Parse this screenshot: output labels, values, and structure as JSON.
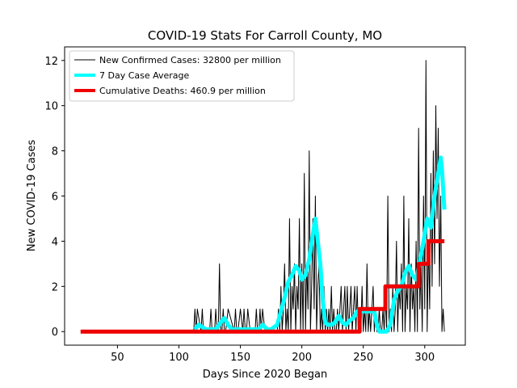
{
  "chart_data": {
    "type": "line",
    "title": "COVID-19 Stats For Carroll County, MO",
    "xlabel": "Days Since 2020 Began",
    "ylabel": "New COVID-19 Cases",
    "xlim": [
      7,
      333
    ],
    "ylim": [
      -0.6,
      12.6
    ],
    "xticks": [
      50,
      100,
      150,
      200,
      250,
      300
    ],
    "yticks": [
      0,
      2,
      4,
      6,
      8,
      10,
      12
    ],
    "grid": false,
    "legend": "top-left",
    "series": [
      {
        "name": "New Confirmed Cases: 32800 per million",
        "color": "#000000",
        "style": "line",
        "x": [
          20,
          110,
          111,
          112,
          113,
          114,
          115,
          118,
          119,
          120,
          121,
          125,
          126,
          127,
          128,
          129,
          130,
          131,
          132,
          133,
          134,
          135,
          136,
          137,
          138,
          140,
          145,
          146,
          147,
          148,
          150,
          152,
          153,
          154,
          155,
          156,
          158,
          160,
          162,
          163,
          164,
          165,
          166,
          167,
          168,
          170,
          180,
          181,
          182,
          183,
          184,
          185,
          186,
          187,
          188,
          189,
          190,
          191,
          192,
          193,
          194,
          195,
          196,
          197,
          198,
          199,
          200,
          201,
          202,
          203,
          204,
          205,
          206,
          207,
          208,
          209,
          210,
          211,
          212,
          213,
          214,
          215,
          216,
          217,
          218,
          219,
          220,
          221,
          222,
          223,
          224,
          225,
          226,
          227,
          228,
          229,
          230,
          231,
          232,
          233,
          234,
          235,
          236,
          237,
          238,
          239,
          240,
          241,
          242,
          243,
          244,
          245,
          246,
          247,
          248,
          249,
          250,
          251,
          252,
          253,
          254,
          255,
          256,
          257,
          258,
          259,
          260,
          261,
          262,
          263,
          264,
          265,
          266,
          267,
          268,
          269,
          270,
          271,
          272,
          273,
          274,
          275,
          276,
          277,
          278,
          279,
          280,
          281,
          282,
          283,
          284,
          285,
          286,
          287,
          288,
          289,
          290,
          291,
          292,
          293,
          294,
          295,
          296,
          297,
          298,
          299,
          300,
          301,
          302,
          303,
          304,
          305,
          306,
          307,
          308,
          309,
          310,
          311,
          312,
          313,
          314,
          315,
          316
        ],
        "y": [
          0,
          0,
          0,
          0,
          1,
          0,
          1,
          0,
          1,
          0,
          0,
          0,
          1,
          0,
          0,
          0,
          1,
          0,
          0,
          3,
          0,
          0,
          1,
          0,
          0,
          1,
          0,
          1,
          0,
          0,
          1,
          0,
          1,
          0,
          0,
          1,
          0,
          0,
          0,
          1,
          0,
          0,
          1,
          0,
          1,
          0,
          0,
          1,
          0,
          2,
          0,
          1,
          3,
          0,
          1,
          0,
          5,
          0,
          2,
          1,
          3,
          0,
          2,
          1,
          5,
          0,
          3,
          0,
          7,
          0,
          3,
          1,
          8,
          0,
          2,
          5,
          1,
          6,
          0,
          2,
          3,
          0,
          1,
          0,
          2,
          0,
          1,
          0,
          1,
          0,
          2,
          0,
          1,
          0,
          0,
          1,
          0,
          1,
          2,
          0,
          1,
          2,
          0,
          2,
          0,
          1,
          2,
          0,
          1,
          2,
          0,
          2,
          0,
          1,
          0,
          2,
          0,
          1,
          0,
          3,
          0,
          1,
          0,
          1,
          2,
          0,
          1,
          0,
          0,
          1,
          0,
          0,
          1,
          0,
          2,
          0,
          6,
          0,
          1,
          0,
          2,
          0,
          1,
          4,
          0,
          2,
          1,
          3,
          0,
          6,
          0,
          2,
          1,
          5,
          0,
          3,
          1,
          2,
          0,
          4,
          0,
          9,
          1,
          3,
          0,
          6,
          1,
          12,
          0,
          4,
          1,
          7,
          2,
          8,
          3,
          10,
          5,
          9,
          2,
          6,
          0,
          1,
          0
        ]
      },
      {
        "name": "7 Day Case Average",
        "color": "#00ffff",
        "style": "line",
        "x": [
          113,
          116,
          119,
          122,
          125,
          130,
          134,
          137,
          140,
          143,
          145,
          150,
          155,
          160,
          165,
          168,
          172,
          175,
          180,
          183,
          186,
          189,
          192,
          195,
          198,
          200,
          203,
          206,
          209,
          211,
          213,
          215,
          217,
          219,
          221,
          224,
          227,
          230,
          233,
          236,
          239,
          242,
          245,
          248,
          251,
          254,
          257,
          259,
          261,
          263,
          266,
          269,
          272,
          275,
          278,
          281,
          284,
          287,
          290,
          293,
          296,
          299,
          302,
          305,
          308,
          311,
          313,
          314,
          316
        ],
        "y": [
          0.1,
          0.3,
          0.2,
          0.1,
          0.1,
          0.1,
          0.4,
          0.6,
          0.3,
          0.1,
          0.1,
          0.1,
          0.1,
          0.1,
          0.1,
          0.3,
          0.1,
          0.1,
          0.3,
          0.9,
          1.5,
          2.2,
          2.5,
          2.9,
          2.7,
          2.3,
          2.5,
          3.2,
          4.3,
          5.0,
          4.0,
          3.0,
          1.4,
          0.4,
          0.3,
          0.3,
          0.4,
          0.7,
          0.4,
          0.3,
          0.5,
          0.6,
          0.9,
          0.9,
          0.9,
          0.9,
          0.9,
          0.9,
          0.3,
          0.0,
          0.0,
          0.0,
          0.3,
          1.4,
          1.8,
          2.0,
          2.6,
          2.9,
          2.5,
          2.3,
          3.1,
          4.0,
          5.0,
          4.6,
          6.0,
          7.0,
          7.7,
          7.2,
          5.4
        ]
      },
      {
        "name": "Cumulative Deaths: 460.9 per million",
        "color": "#ee0000",
        "style": "step",
        "x": [
          20,
          247,
          268,
          295,
          303,
          316
        ],
        "y": [
          0,
          1,
          2,
          3,
          4,
          4
        ]
      }
    ]
  }
}
